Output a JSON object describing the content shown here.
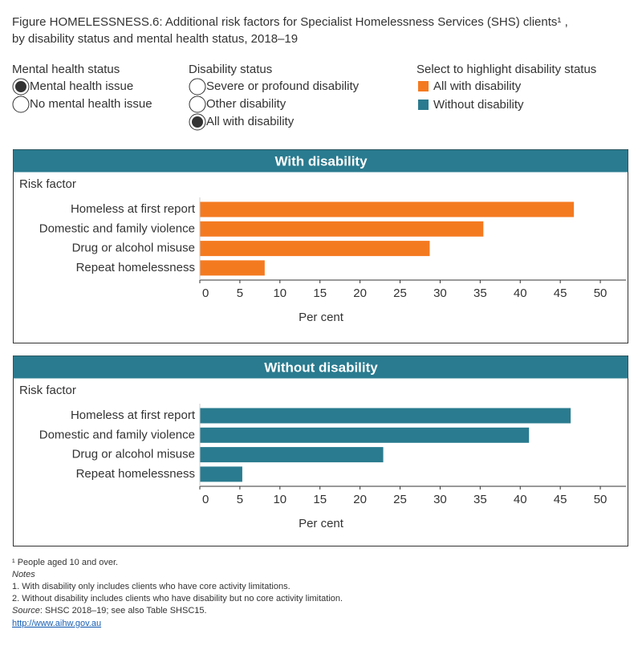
{
  "header": {
    "title_lines": [
      "Figure HOMELESSNESS.6: Additional risk factors for Specialist Homelessness Services (SHS) clients¹ ,",
      "by disability status and mental health status, 2018–19"
    ]
  },
  "filters": [
    {
      "label": "Mental health status",
      "options": [
        "Mental health issue",
        "No mental health issue"
      ],
      "selected": 0
    },
    {
      "label": "Disability status",
      "options": [
        "Severe or profound disability",
        "Other disability",
        "All with disability"
      ],
      "selected": 2
    }
  ],
  "legend": {
    "label": "Select to highlight disability status",
    "items": [
      {
        "name": "All with disability",
        "color": "#f47a20"
      },
      {
        "name": "Without disability",
        "color": "#2a7b8f"
      }
    ]
  },
  "chart_data": [
    {
      "type": "bar",
      "orientation": "horizontal",
      "title": "With disability",
      "y_label": "Risk factor",
      "x_label": "Per cent",
      "categories": [
        "Homeless at first report",
        "Domestic and family violence",
        "Drug or alcohol misuse",
        "Repeat homelessness"
      ],
      "values": [
        46.7,
        35.4,
        28.7,
        8.1
      ],
      "color": "#f47a20",
      "header_color": "#2a7b8f",
      "xlim": [
        0,
        53.2
      ],
      "xticks": [
        0,
        5,
        10,
        15,
        20,
        25,
        30,
        35,
        40,
        45,
        50
      ]
    },
    {
      "type": "bar",
      "orientation": "horizontal",
      "title": "Without disability",
      "y_label": "Risk factor",
      "x_label": "Per cent",
      "categories": [
        "Homeless at first report",
        "Domestic and family violence",
        "Drug or alcohol misuse",
        "Repeat homelessness"
      ],
      "values": [
        46.3,
        41.1,
        22.9,
        5.3
      ],
      "color": "#2a7b8f",
      "header_color": "#2a7b8f",
      "xlim": [
        0,
        53.2
      ],
      "xticks": [
        0,
        5,
        10,
        15,
        20,
        25,
        30,
        35,
        40,
        45,
        50
      ]
    }
  ],
  "footnotes": {
    "footnote": "¹ People aged 10 and over.",
    "notes_label": "Notes",
    "notes": [
      "1. With disability only includes clients who have core activity limitations.",
      "2. Without disability includes clients who have disability but no core activity limitation."
    ],
    "source_label": "Source",
    "source_text": ": SHSC 2018–19; see also Table SHSC15.",
    "link": "http://www.aihw.gov.au"
  }
}
